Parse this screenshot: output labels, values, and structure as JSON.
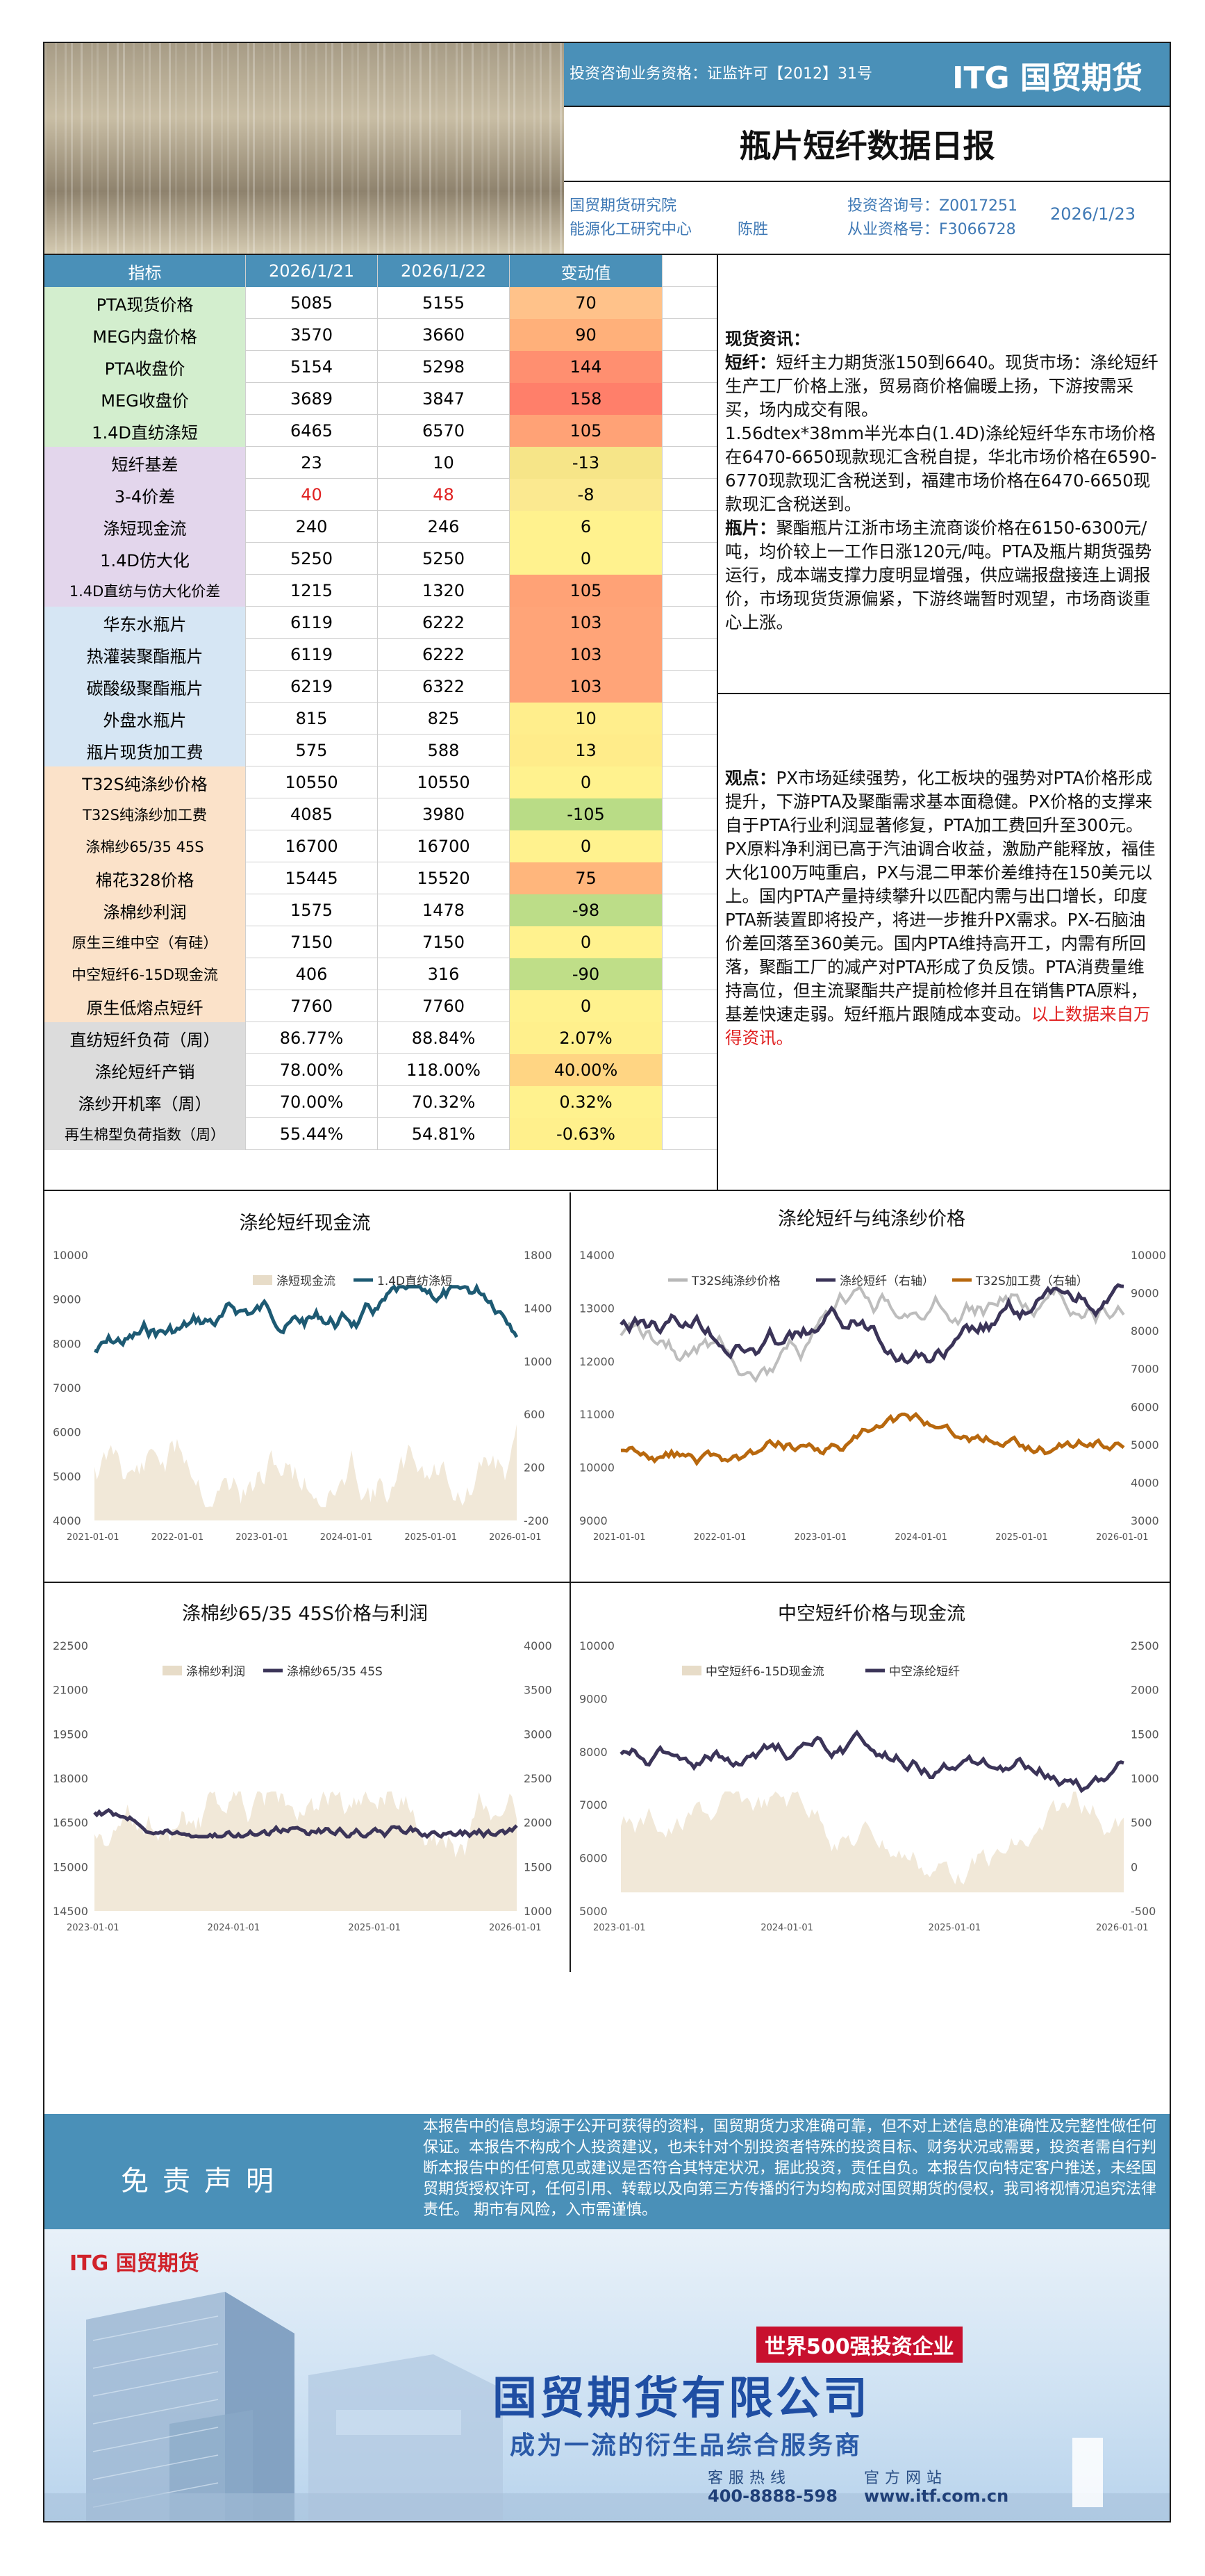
{
  "header": {
    "license": "投资咨询业务资格：证监许可【2012】31号",
    "logo": "ITG 国贸期货",
    "title": "瓶片短纤数据日报",
    "institute": "国贸期货研究院",
    "center": "能源化工研究中心",
    "analyst": "陈胜",
    "consult_no": "投资咨询号：Z0017251",
    "qualification_no": "从业资格号：F3066728",
    "date": "2026/1/23"
  },
  "table": {
    "headers": [
      "指标",
      "2026/1/21",
      "2026/1/22",
      "变动值"
    ],
    "rows": [
      {
        "name": "PTA现货价格",
        "v1": "5085",
        "v2": "5155",
        "chg": "70",
        "c": "#ffc28a",
        "n": "#d3eece"
      },
      {
        "name": "MEG内盘价格",
        "v1": "3570",
        "v2": "3660",
        "chg": "90",
        "c": "#ffb07a",
        "n": "#d3eece"
      },
      {
        "name": "PTA收盘价",
        "v1": "5154",
        "v2": "5298",
        "chg": "144",
        "c": "#ff8f70",
        "n": "#d3eece"
      },
      {
        "name": "MEG收盘价",
        "v1": "3689",
        "v2": "3847",
        "chg": "158",
        "c": "#ff7f6a",
        "n": "#d3eece"
      },
      {
        "name": "1.4D直纺涤短",
        "v1": "6465",
        "v2": "6570",
        "chg": "105",
        "c": "#ffa276",
        "n": "#d3eece"
      },
      {
        "name": "短纤基差",
        "v1": "23",
        "v2": "10",
        "chg": "-13",
        "c": "#f6e588",
        "n": "#e3d6ec"
      },
      {
        "name": "3-4价差",
        "v1": "40",
        "v2": "48",
        "chg": "-8",
        "c": "#fbe990",
        "n": "#e3d6ec",
        "red": true
      },
      {
        "name": "涤短现金流",
        "v1": "240",
        "v2": "246",
        "chg": "6",
        "c": "#fff28e",
        "n": "#e3d6ec"
      },
      {
        "name": "1.4D仿大化",
        "v1": "5250",
        "v2": "5250",
        "chg": "0",
        "c": "#fff28e",
        "n": "#e3d6ec"
      },
      {
        "name": "1.4D直纺与仿大化价差",
        "v1": "1215",
        "v2": "1320",
        "chg": "105",
        "c": "#ffa276",
        "n": "#e3d6ec"
      },
      {
        "name": "华东水瓶片",
        "v1": "6119",
        "v2": "6222",
        "chg": "103",
        "c": "#ffa478",
        "n": "#d6e6f4"
      },
      {
        "name": "热灌装聚酯瓶片",
        "v1": "6119",
        "v2": "6222",
        "chg": "103",
        "c": "#ffa478",
        "n": "#d6e6f4"
      },
      {
        "name": "碳酸级聚酯瓶片",
        "v1": "6219",
        "v2": "6322",
        "chg": "103",
        "c": "#ffa478",
        "n": "#d6e6f4"
      },
      {
        "name": "外盘水瓶片",
        "v1": "815",
        "v2": "825",
        "chg": "10",
        "c": "#ffee8c",
        "n": "#d6e6f4"
      },
      {
        "name": "瓶片现货加工费",
        "v1": "575",
        "v2": "588",
        "chg": "13",
        "c": "#ffec8a",
        "n": "#d6e6f4"
      },
      {
        "name": "T32S纯涤纱价格",
        "v1": "10550",
        "v2": "10550",
        "chg": "0",
        "c": "#fff28e",
        "n": "#fbe2c9"
      },
      {
        "name": "T32S纯涤纱加工费",
        "v1": "4085",
        "v2": "3980",
        "chg": "-105",
        "c": "#b9dc86",
        "n": "#fbe2c9"
      },
      {
        "name": "涤棉纱65/35 45S",
        "v1": "16700",
        "v2": "16700",
        "chg": "0",
        "c": "#fff28e",
        "n": "#fbe2c9"
      },
      {
        "name": "棉花328价格",
        "v1": "15445",
        "v2": "15520",
        "chg": "75",
        "c": "#ffb67c",
        "n": "#fbe2c9"
      },
      {
        "name": "涤棉纱利润",
        "v1": "1575",
        "v2": "1478",
        "chg": "-98",
        "c": "#bcdd88",
        "n": "#fbe2c9"
      },
      {
        "name": "原生三维中空（有硅）",
        "v1": "7150",
        "v2": "7150",
        "chg": "0",
        "c": "#fff28e",
        "n": "#fbe2c9"
      },
      {
        "name": "中空短纤6-15D现金流",
        "v1": "406",
        "v2": "316",
        "chg": "-90",
        "c": "#bfde88",
        "n": "#fbe2c9"
      },
      {
        "name": "原生低熔点短纤",
        "v1": "7760",
        "v2": "7760",
        "chg": "0",
        "c": "#fff28e",
        "n": "#fbe2c9"
      },
      {
        "name": "直纺短纤负荷（周）",
        "v1": "86.77%",
        "v2": "88.84%",
        "chg": "2.07%",
        "c": "#fff08c",
        "n": "#dcdcdc"
      },
      {
        "name": "涤纶短纤产销",
        "v1": "78.00%",
        "v2": "118.00%",
        "chg": "40.00%",
        "c": "#ffd583",
        "n": "#dcdcdc"
      },
      {
        "name": "涤纱开机率（周）",
        "v1": "70.00%",
        "v2": "70.32%",
        "chg": "0.32%",
        "c": "#fff28e",
        "n": "#dcdcdc"
      },
      {
        "name": "再生棉型负荷指数（周）",
        "v1": "55.44%",
        "v2": "54.81%",
        "chg": "-0.63%",
        "c": "#fff08c",
        "n": "#dcdcdc"
      }
    ]
  },
  "spot": {
    "heading": "现货资讯：",
    "sf_label": "短纤：",
    "sf_text": "短纤主力期货涨150到6640。现货市场：涤纶短纤生产工厂价格上涨，贸易商价格偏暖上扬，下游按需采买，场内成交有限。",
    "sf_text2": "1.56dtex*38mm半光本白(1.4D)涤纶短纤华东市场价格在6470-6650现款现汇含税自提，华北市场价格在6590-6770现款现汇含税送到，福建市场价格在6470-6650现款现汇含税送到。",
    "bp_label": "瓶片：",
    "bp_text": "聚酯瓶片江浙市场主流商谈价格在6150-6300元/吨，均价较上一工作日涨120元/吨。PTA及瓶片期货强势运行，成本端支撑力度明显增强，供应端报盘接连上调报价，市场现货货源偏紧，下游终端暂时观望，市场商谈重心上涨。"
  },
  "view": {
    "label": "观点：",
    "text": "PX市场延续强势，化工板块的强势对PTA价格形成提升，下游PTA及聚酯需求基本面稳健。PX价格的支撑来自于PTA行业利润显著修复，PTA加工费回升至300元。PX原料净利润已高于汽油调合收益，激励产能释放，福佳大化100万吨重启，PX与混二甲苯价差维持在150美元以上。国内PTA产量持续攀升以匹配内需与出口增长，印度PTA新装置即将投产，将进一步推升PX需求。PX-石脑油价差回落至360美元。国内PTA维持高开工，内需有所回落，聚酯工厂的减产对PTA形成了负反馈。PTA消费量维持高位，但主流聚酯共产提前检修并且在销售PTA原料，基差快速走弱。短纤瓶片跟随成本变动。",
    "source": "以上数据来自万得资讯。"
  },
  "charts": [
    {
      "title": "涤纶短纤现金流",
      "legend": [
        "涤短现金流",
        "1.4D直纺涤短"
      ],
      "yl": [
        "10000",
        "9000",
        "8000",
        "7000",
        "6000",
        "5000",
        "4000"
      ],
      "yr": [
        "1800",
        "1400",
        "1000",
        "600",
        "200",
        "-200"
      ],
      "xt": [
        "2021-01-01",
        "2022-01-01",
        "2023-01-01",
        "2024-01-01",
        "2025-01-01",
        "2026-01-01"
      ]
    },
    {
      "title": "涤纶短纤与纯涤纱价格",
      "legend": [
        "T32S纯涤纱价格",
        "涤纶短纤（右轴）",
        "T32S加工费（右轴）"
      ],
      "yl": [
        "14000",
        "13000",
        "12000",
        "11000",
        "10000",
        "9000"
      ],
      "yr": [
        "10000",
        "9000",
        "8000",
        "7000",
        "6000",
        "5000",
        "4000",
        "3000"
      ],
      "xt": [
        "2021-01-01",
        "2022-01-01",
        "2023-01-01",
        "2024-01-01",
        "2025-01-01",
        "2026-01-01"
      ]
    },
    {
      "title": "涤棉纱65/35 45S价格与利润",
      "legend": [
        "涤棉纱利润",
        "涤棉纱65/35 45S"
      ],
      "yl": [
        "22500",
        "21000",
        "19500",
        "18000",
        "16500",
        "15000",
        "14500"
      ],
      "yr": [
        "4000",
        "3500",
        "3000",
        "2500",
        "2000",
        "1500",
        "1000"
      ],
      "xt": [
        "2023-01-01",
        "2024-01-01",
        "2025-01-01",
        "2026-01-01"
      ]
    },
    {
      "title": "中空短纤价格与现金流",
      "legend": [
        "中空短纤6-15D现金流",
        "中空涤纶短纤"
      ],
      "yl": [
        "10000",
        "9000",
        "8000",
        "7000",
        "6000",
        "5000"
      ],
      "yr": [
        "2500",
        "2000",
        "1500",
        "1000",
        "500",
        "0",
        "-500"
      ],
      "xt": [
        "2023-01-01",
        "2024-01-01",
        "2025-01-01",
        "2026-01-01"
      ]
    }
  ],
  "disclaimer": {
    "label": "免责声明",
    "text": "本报告中的信息均源于公开可获得的资料，国贸期货力求准确可靠，但不对上述信息的准确性及完整性做任何保证。本报告不构成个人投资建议，也未针对个别投资者特殊的投资目标、财务状况或需要，投资者需自行判断本报告中的任何意见或建议是否符合其特定状况，据此投资，责任自负。本报告仅向特定客户推送，未经国贸期货授权许可，任何引用、转载以及向第三方传播的行为均构成对国贸期货的侵权，我司将视情况追究法律责任。 期市有风险，入市需谨慎。"
  },
  "ad": {
    "logo": "ITG 国贸期货",
    "badge": "世界500强投资企业",
    "company": "国贸期货有限公司",
    "slogan": "成为一流的衍生品综合服务商",
    "hotline_label": "客服热线",
    "website_label": "官方网站",
    "hotline": "400-8888-598",
    "website": "www.itf.com.cn"
  }
}
